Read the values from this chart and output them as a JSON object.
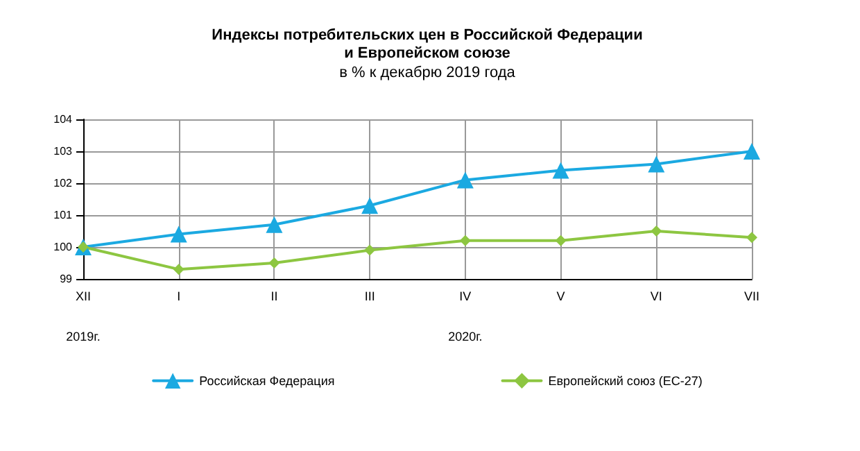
{
  "chart_data": {
    "type": "line",
    "title": "Индексы потребительских цен в Российской Федерации\nи Европейском союзе",
    "subtitle": "в % к декабрю 2019 года",
    "categories": [
      "XII",
      "I",
      "II",
      "III",
      "IV",
      "V",
      "VI",
      "VII"
    ],
    "series": [
      {
        "name": "Российская Федерация",
        "color": "#1ba9e1",
        "marker": "triangle",
        "values": [
          100,
          100.4,
          100.7,
          101.3,
          102.1,
          102.4,
          102.6,
          103.0
        ]
      },
      {
        "name": "Европейский союз (ЕС-27)",
        "color": "#8dc641",
        "marker": "diamond",
        "values": [
          100,
          99.3,
          99.5,
          99.9,
          100.2,
          100.2,
          100.5,
          100.3
        ]
      }
    ],
    "ylim": [
      99,
      104
    ],
    "yticks": [
      99,
      100,
      101,
      102,
      103,
      104
    ],
    "grid": true,
    "legend": "bottom",
    "line_style": "solid",
    "annotations": [
      "2019г.",
      "2020г."
    ]
  }
}
